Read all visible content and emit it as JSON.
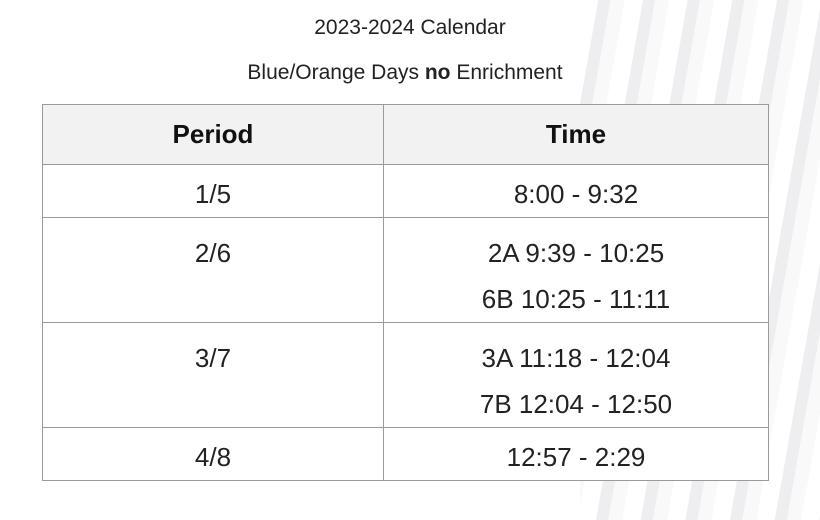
{
  "title": "2023-2024 Calendar",
  "subtitle": {
    "before": "Blue/Orange Days ",
    "bold": "no",
    "after": " Enrichment"
  },
  "table": {
    "headers": [
      "Period",
      "Time"
    ],
    "rows": [
      {
        "period": "1/5",
        "times": [
          "8:00 - 9:32"
        ]
      },
      {
        "period": "2/6",
        "times": [
          "2A 9:39 - 10:25",
          "6B 10:25 - 11:11"
        ]
      },
      {
        "period": "3/7",
        "times": [
          "3A 11:18 - 12:04",
          "7B 12:04 - 12:50"
        ]
      },
      {
        "period": "4/8",
        "times": [
          "12:57 - 2:29"
        ]
      }
    ]
  }
}
